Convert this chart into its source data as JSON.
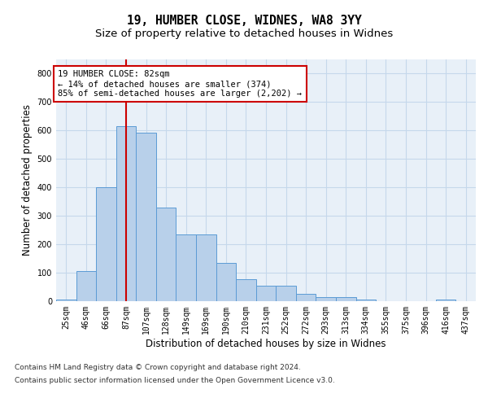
{
  "title": "19, HUMBER CLOSE, WIDNES, WA8 3YY",
  "subtitle": "Size of property relative to detached houses in Widnes",
  "xlabel": "Distribution of detached houses by size in Widnes",
  "ylabel": "Number of detached properties",
  "bar_labels": [
    "25sqm",
    "46sqm",
    "66sqm",
    "87sqm",
    "107sqm",
    "128sqm",
    "149sqm",
    "169sqm",
    "190sqm",
    "210sqm",
    "231sqm",
    "252sqm",
    "272sqm",
    "293sqm",
    "313sqm",
    "334sqm",
    "355sqm",
    "375sqm",
    "396sqm",
    "416sqm",
    "437sqm"
  ],
  "bar_values": [
    5,
    106,
    401,
    614,
    592,
    328,
    235,
    235,
    135,
    78,
    54,
    54,
    25,
    14,
    14,
    7,
    0,
    0,
    0,
    7,
    0
  ],
  "bar_color": "#b8d0ea",
  "bar_edge_color": "#5b9bd5",
  "vline_x": 3,
  "vline_color": "#cc0000",
  "annotation_text": "19 HUMBER CLOSE: 82sqm\n← 14% of detached houses are smaller (374)\n85% of semi-detached houses are larger (2,202) →",
  "annotation_box_color": "#ffffff",
  "annotation_box_edge_color": "#cc0000",
  "ylim": [
    0,
    850
  ],
  "yticks": [
    0,
    100,
    200,
    300,
    400,
    500,
    600,
    700,
    800
  ],
  "grid_color": "#c5d8eb",
  "background_color": "#e8f0f8",
  "footer_line1": "Contains HM Land Registry data © Crown copyright and database right 2024.",
  "footer_line2": "Contains public sector information licensed under the Open Government Licence v3.0.",
  "title_fontsize": 10.5,
  "subtitle_fontsize": 9.5,
  "axis_label_fontsize": 8.5,
  "tick_fontsize": 7,
  "footer_fontsize": 6.5,
  "ann_fontsize": 7.5
}
